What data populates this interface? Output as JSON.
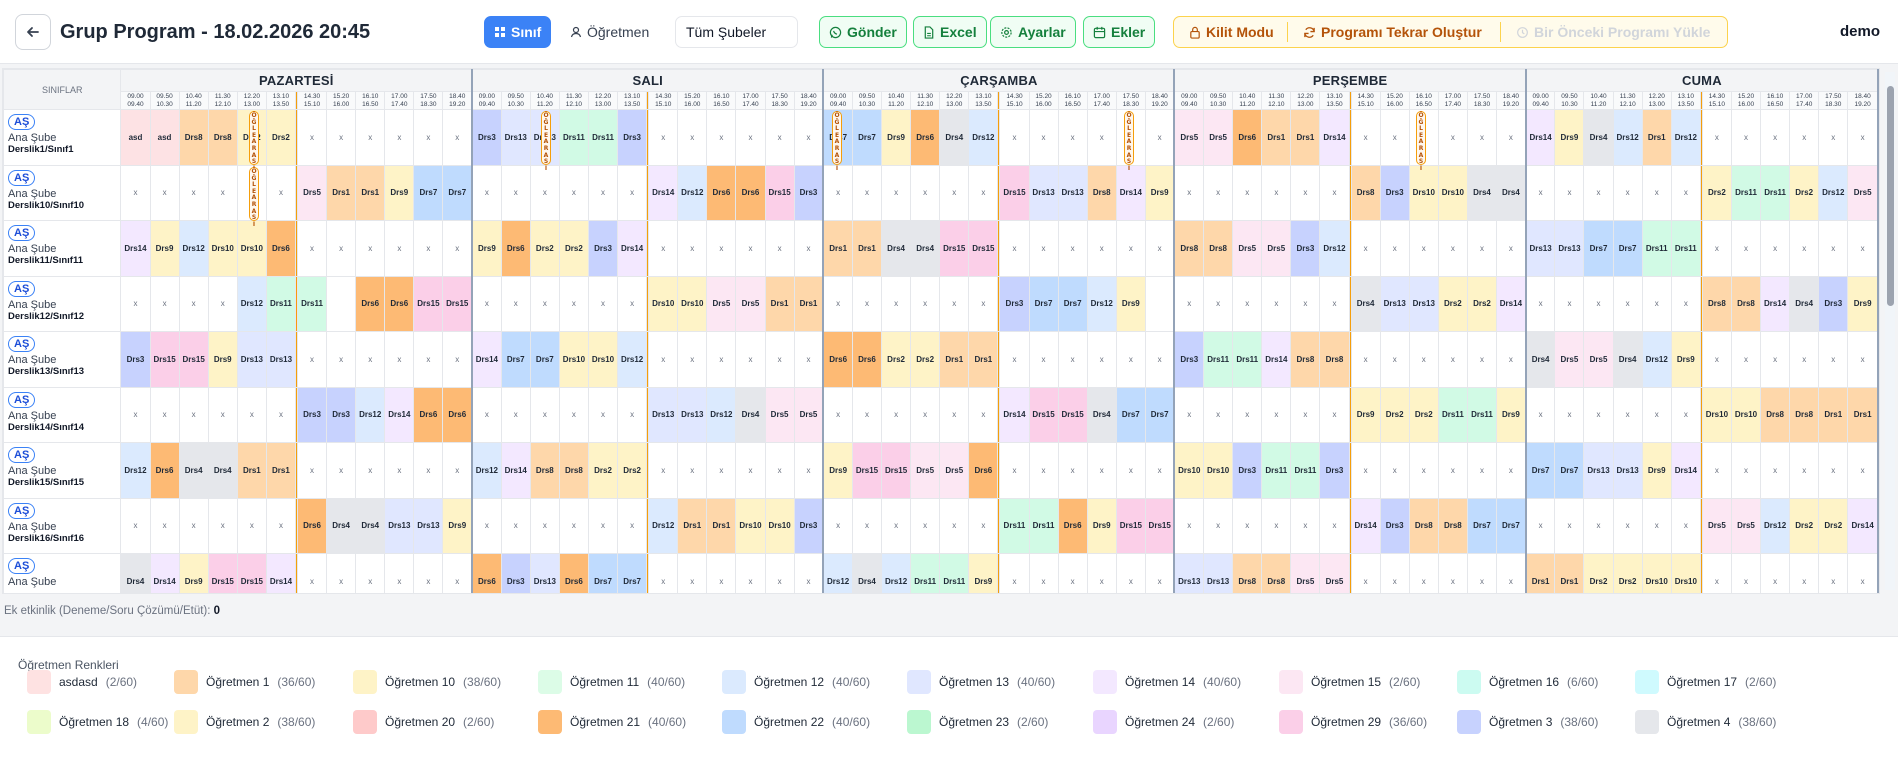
{
  "header": {
    "title": "Grup Program - 18.02.2026 20:45",
    "user": "demo",
    "sinif_label": "Sınıf",
    "ogretmen_label": "Öğretmen",
    "sube_value": "Tüm Şubeler",
    "gonder_label": "Gönder",
    "excel_label": "Excel",
    "ayarlar_label": "Ayarlar",
    "ekler_label": "Ekler",
    "kilit_label": "Kilit Modu",
    "tekrar_label": "Programı Tekrar Oluştur",
    "onceki_label": "Bir Önceki Programı Yükle"
  },
  "grid": {
    "corner": "SINIFLAR",
    "ogle": "ÖĞLE ARASI",
    "days": [
      "PAZARTESİ",
      "SALI",
      "ÇARŞAMBA",
      "PERŞEMBE",
      "CUMA"
    ],
    "slots": [
      [
        "09.00",
        "09.40"
      ],
      [
        "09.50",
        "10.30"
      ],
      [
        "10.40",
        "11.20"
      ],
      [
        "11.30",
        "12.10"
      ],
      [
        "12.20",
        "13.00"
      ],
      [
        "13.10",
        "13.50"
      ],
      [
        "14.30",
        "15.10"
      ],
      [
        "15.20",
        "16.00"
      ],
      [
        "16.10",
        "16.50"
      ],
      [
        "17.00",
        "17.40"
      ],
      [
        "17.50",
        "18.30"
      ],
      [
        "18.40",
        "19.20"
      ]
    ],
    "empty_mark": "x",
    "rows": [
      {
        "badge": "AŞ",
        "sube": "Ana Şube",
        "derslik": "Derslik1/Sınıf1",
        "days": [
          [
            "asd",
            "asd",
            "Drs8",
            "Drs8",
            "Drs2",
            "Drs2",
            "x",
            "x",
            "x",
            "x",
            "x",
            "x"
          ],
          [
            "Drs3",
            "Drs13",
            "Drs13",
            "Drs11",
            "Drs11",
            "Drs3",
            "x",
            "x",
            "x",
            "x",
            "x",
            "x"
          ],
          [
            "Drs7",
            "Drs7",
            "Drs9",
            "Drs6",
            "Drs4",
            "Drs12",
            "x",
            "x",
            "x",
            "x",
            "x",
            "x"
          ],
          [
            "Drs5",
            "Drs5",
            "Drs6",
            "Drs1",
            "Drs1",
            "Drs14",
            "x",
            "x",
            "x",
            "x",
            "x",
            "x"
          ],
          [
            "Drs14",
            "Drs9",
            "Drs4",
            "Drs12",
            "Drs1",
            "Drs12",
            "x",
            "x",
            "x",
            "x",
            "x",
            "x"
          ]
        ]
      },
      {
        "badge": "AŞ",
        "sube": "Ana Şube",
        "derslik": "Derslik10/Sınıf10",
        "days": [
          [
            "x",
            "x",
            "x",
            "x",
            "x",
            "x",
            "Drs5",
            "Drs1",
            "Drs1",
            "Drs9",
            "Drs7",
            "Drs7"
          ],
          [
            "x",
            "x",
            "x",
            "x",
            "x",
            "x",
            "Drs14",
            "Drs12",
            "Drs6",
            "Drs6",
            "Drs15",
            "Drs3"
          ],
          [
            "x",
            "x",
            "x",
            "x",
            "x",
            "x",
            "Drs15",
            "Drs13",
            "Drs13",
            "Drs8",
            "Drs14",
            "Drs9"
          ],
          [
            "x",
            "x",
            "x",
            "x",
            "x",
            "x",
            "Drs8",
            "Drs3",
            "Drs10",
            "Drs10",
            "Drs4",
            "Drs4"
          ],
          [
            "x",
            "x",
            "x",
            "x",
            "x",
            "x",
            "Drs2",
            "Drs11",
            "Drs11",
            "Drs2",
            "Drs12",
            "Drs5"
          ]
        ]
      },
      {
        "badge": "AŞ",
        "sube": "Ana Şube",
        "derslik": "Derslik11/Sınıf11",
        "days": [
          [
            "Drs14",
            "Drs9",
            "Drs12",
            "Drs10",
            "Drs10",
            "Drs6",
            "x",
            "x",
            "x",
            "x",
            "x",
            "x"
          ],
          [
            "Drs9",
            "Drs6",
            "Drs2",
            "Drs2",
            "Drs3",
            "Drs14",
            "x",
            "x",
            "x",
            "x",
            "x",
            "x"
          ],
          [
            "Drs1",
            "Drs1",
            "Drs4",
            "Drs4",
            "Drs15",
            "Drs15",
            "x",
            "x",
            "x",
            "x",
            "x",
            "x"
          ],
          [
            "Drs8",
            "Drs8",
            "Drs5",
            "Drs5",
            "Drs3",
            "Drs12",
            "x",
            "x",
            "x",
            "x",
            "x",
            "x"
          ],
          [
            "Drs13",
            "Drs13",
            "Drs7",
            "Drs7",
            "Drs11",
            "Drs11",
            "x",
            "x",
            "x",
            "x",
            "x",
            "x"
          ]
        ]
      },
      {
        "badge": "AŞ",
        "sube": "Ana Şube",
        "derslik": "Derslik12/Sınıf12",
        "days": [
          [
            "x",
            "x",
            "x",
            "x",
            "Drs12",
            "Drs11",
            "Drs11",
            "",
            "Drs6",
            "Drs6",
            "Drs15",
            "Drs15"
          ],
          [
            "x",
            "x",
            "x",
            "x",
            "x",
            "x",
            "Drs10",
            "Drs10",
            "Drs5",
            "Drs5",
            "Drs1",
            "Drs1"
          ],
          [
            "x",
            "x",
            "x",
            "x",
            "x",
            "x",
            "Drs3",
            "Drs7",
            "Drs7",
            "Drs12",
            "Drs9",
            ""
          ],
          [
            "x",
            "x",
            "x",
            "x",
            "x",
            "x",
            "Drs4",
            "Drs13",
            "Drs13",
            "Drs2",
            "Drs2",
            "Drs14"
          ],
          [
            "x",
            "x",
            "x",
            "x",
            "x",
            "x",
            "Drs8",
            "Drs8",
            "Drs14",
            "Drs4",
            "Drs3",
            "Drs9"
          ]
        ]
      },
      {
        "badge": "AŞ",
        "sube": "Ana Şube",
        "derslik": "Derslik13/Sınıf13",
        "days": [
          [
            "Drs3",
            "Drs15",
            "Drs15",
            "Drs9",
            "Drs13",
            "Drs13",
            "x",
            "x",
            "x",
            "x",
            "x",
            "x"
          ],
          [
            "Drs14",
            "Drs7",
            "Drs7",
            "Drs10",
            "Drs10",
            "Drs12",
            "x",
            "x",
            "x",
            "x",
            "x",
            "x"
          ],
          [
            "Drs6",
            "Drs6",
            "Drs2",
            "Drs2",
            "Drs1",
            "Drs1",
            "x",
            "x",
            "x",
            "x",
            "x",
            "x"
          ],
          [
            "Drs3",
            "Drs11",
            "Drs11",
            "Drs14",
            "Drs8",
            "Drs8",
            "x",
            "x",
            "x",
            "x",
            "x",
            "x"
          ],
          [
            "Drs4",
            "Drs5",
            "Drs5",
            "Drs4",
            "Drs12",
            "Drs9",
            "x",
            "x",
            "x",
            "x",
            "x",
            "x"
          ]
        ]
      },
      {
        "badge": "AŞ",
        "sube": "Ana Şube",
        "derslik": "Derslik14/Sınıf14",
        "days": [
          [
            "x",
            "x",
            "x",
            "x",
            "x",
            "x",
            "Drs3",
            "Drs3",
            "Drs12",
            "Drs14",
            "Drs6",
            "Drs6"
          ],
          [
            "x",
            "x",
            "x",
            "x",
            "x",
            "x",
            "Drs13",
            "Drs13",
            "Drs12",
            "Drs4",
            "Drs5",
            "Drs5"
          ],
          [
            "x",
            "x",
            "x",
            "x",
            "x",
            "x",
            "Drs14",
            "Drs15",
            "Drs15",
            "Drs4",
            "Drs7",
            "Drs7"
          ],
          [
            "x",
            "x",
            "x",
            "x",
            "x",
            "x",
            "Drs9",
            "Drs2",
            "Drs2",
            "Drs11",
            "Drs11",
            "Drs9"
          ],
          [
            "x",
            "x",
            "x",
            "x",
            "x",
            "x",
            "Drs10",
            "Drs10",
            "Drs8",
            "Drs8",
            "Drs1",
            "Drs1"
          ]
        ]
      },
      {
        "badge": "AŞ",
        "sube": "Ana Şube",
        "derslik": "Derslik15/Sınıf15",
        "days": [
          [
            "Drs12",
            "Drs6",
            "Drs4",
            "Drs4",
            "Drs1",
            "Drs1",
            "x",
            "x",
            "x",
            "x",
            "x",
            "x"
          ],
          [
            "Drs12",
            "Drs14",
            "Drs8",
            "Drs8",
            "Drs2",
            "Drs2",
            "x",
            "x",
            "x",
            "x",
            "x",
            "x"
          ],
          [
            "Drs9",
            "Drs15",
            "Drs15",
            "Drs5",
            "Drs5",
            "Drs6",
            "x",
            "x",
            "x",
            "x",
            "x",
            "x"
          ],
          [
            "Drs10",
            "Drs10",
            "Drs3",
            "Drs11",
            "Drs11",
            "Drs3",
            "x",
            "x",
            "x",
            "x",
            "x",
            "x"
          ],
          [
            "Drs7",
            "Drs7",
            "Drs13",
            "Drs13",
            "Drs9",
            "Drs14",
            "x",
            "x",
            "x",
            "x",
            "x",
            "x"
          ]
        ]
      },
      {
        "badge": "AŞ",
        "sube": "Ana Şube",
        "derslik": "Derslik16/Sınıf16",
        "days": [
          [
            "x",
            "x",
            "x",
            "x",
            "x",
            "x",
            "Drs6",
            "Drs4",
            "Drs4",
            "Drs13",
            "Drs13",
            "Drs9"
          ],
          [
            "x",
            "x",
            "x",
            "x",
            "x",
            "x",
            "Drs12",
            "Drs1",
            "Drs1",
            "Drs10",
            "Drs10",
            "Drs3"
          ],
          [
            "x",
            "x",
            "x",
            "x",
            "x",
            "x",
            "Drs11",
            "Drs11",
            "Drs6",
            "Drs9",
            "Drs15",
            "Drs15"
          ],
          [
            "x",
            "x",
            "x",
            "x",
            "x",
            "x",
            "Drs14",
            "Drs3",
            "Drs8",
            "Drs8",
            "Drs7",
            "Drs7"
          ],
          [
            "x",
            "x",
            "x",
            "x",
            "x",
            "x",
            "Drs5",
            "Drs5",
            "Drs12",
            "Drs2",
            "Drs2",
            "Drs14"
          ]
        ]
      },
      {
        "badge": "AŞ",
        "sube": "Ana Şube",
        "derslik": "",
        "days": [
          [
            "Drs4",
            "Drs14",
            "Drs9",
            "Drs15",
            "Drs15",
            "Drs14",
            "x",
            "x",
            "x",
            "x",
            "x",
            "x"
          ],
          [
            "Drs6",
            "Drs3",
            "Drs13",
            "Drs6",
            "Drs7",
            "Drs7",
            "x",
            "x",
            "x",
            "x",
            "x",
            "x"
          ],
          [
            "Drs12",
            "Drs4",
            "Drs12",
            "Drs11",
            "Drs11",
            "Drs9",
            "x",
            "x",
            "x",
            "x",
            "x",
            "x"
          ],
          [
            "Drs13",
            "Drs13",
            "Drs8",
            "Drs8",
            "Drs5",
            "Drs5",
            "x",
            "x",
            "x",
            "x",
            "x",
            "x"
          ],
          [
            "Drs1",
            "Drs1",
            "Drs2",
            "Drs2",
            "Drs10",
            "Drs10",
            "x",
            "x",
            "x",
            "x",
            "x",
            "x"
          ]
        ]
      }
    ]
  },
  "course_colors": {
    "asd": "#fde2e4",
    "Drs1": "#fed7aa",
    "Drs2": "#fef3c7",
    "Drs3": "#c7d2fe",
    "Drs4": "#e5e7eb",
    "Drs5": "#fce7f3",
    "Drs6": "#fdba74",
    "Drs7": "#bfdbfe",
    "Drs8": "#fed7aa",
    "Drs9": "#fef3c7",
    "Drs10": "#fef3c7",
    "Drs11": "#d1fae5",
    "Drs12": "#dbeafe",
    "Drs13": "#e0e7ff",
    "Drs14": "#f3e8ff",
    "Drs15": "#fbcfe8"
  },
  "extra": {
    "label": "Ek etkinlik (Deneme/Soru Çözümü/Etüt):",
    "value": "0"
  },
  "legend": {
    "title": "Öğretmen Renkleri",
    "items": [
      {
        "name": "asdasd",
        "count": "(2/60)",
        "color": "#fee2e2"
      },
      {
        "name": "Öğretmen 1",
        "count": "(36/60)",
        "color": "#fed7aa"
      },
      {
        "name": "Öğretmen 10",
        "count": "(38/60)",
        "color": "#fef3c7"
      },
      {
        "name": "Öğretmen 11",
        "count": "(40/60)",
        "color": "#dcfce7"
      },
      {
        "name": "Öğretmen 12",
        "count": "(40/60)",
        "color": "#dbeafe"
      },
      {
        "name": "Öğretmen 13",
        "count": "(40/60)",
        "color": "#e0e7ff"
      },
      {
        "name": "Öğretmen 14",
        "count": "(40/60)",
        "color": "#f3e8ff"
      },
      {
        "name": "Öğretmen 15",
        "count": "(2/60)",
        "color": "#fce7f3"
      },
      {
        "name": "Öğretmen 16",
        "count": "(6/60)",
        "color": "#ccfbf1"
      },
      {
        "name": "Öğretmen 17",
        "count": "(2/60)",
        "color": "#cffafe"
      },
      {
        "name": "Öğretmen 18",
        "count": "(4/60)",
        "color": "#ecfccb"
      },
      {
        "name": "Öğretmen 2",
        "count": "(38/60)",
        "color": "#fef3c7"
      },
      {
        "name": "Öğretmen 20",
        "count": "(2/60)",
        "color": "#fecaca"
      },
      {
        "name": "Öğretmen 21",
        "count": "(40/60)",
        "color": "#fdba74"
      },
      {
        "name": "Öğretmen 22",
        "count": "(40/60)",
        "color": "#bfdbfe"
      },
      {
        "name": "Öğretmen 23",
        "count": "(2/60)",
        "color": "#bbf7d0"
      },
      {
        "name": "Öğretmen 24",
        "count": "(2/60)",
        "color": "#e9d5ff"
      },
      {
        "name": "Öğretmen 29",
        "count": "(36/60)",
        "color": "#fbcfe8"
      },
      {
        "name": "Öğretmen 3",
        "count": "(38/60)",
        "color": "#c7d2fe"
      },
      {
        "name": "Öğretmen 4",
        "count": "(38/60)",
        "color": "#e5e7eb"
      }
    ]
  }
}
